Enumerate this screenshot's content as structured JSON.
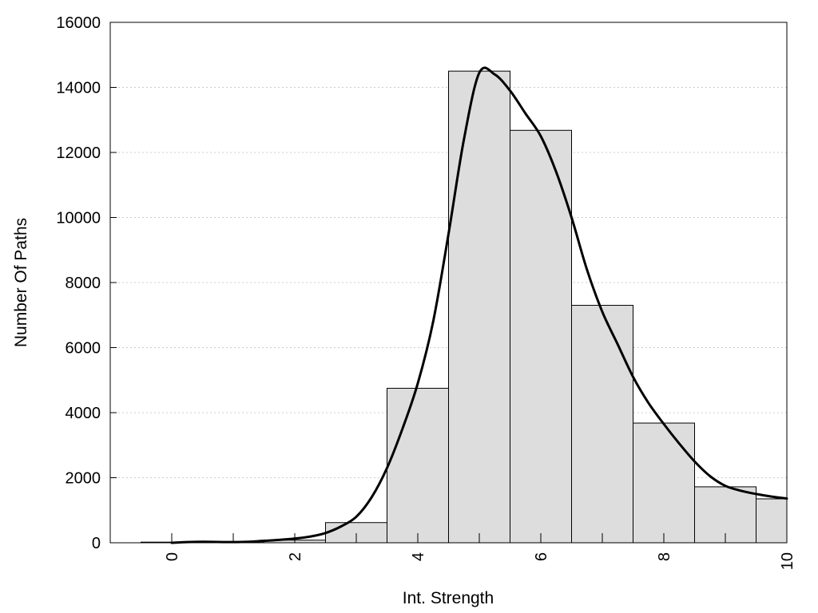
{
  "chart_data": {
    "type": "bar",
    "title": "",
    "xlabel": "Int. Strength",
    "ylabel": "Number Of Paths",
    "xlim": [
      -1,
      10
    ],
    "ylim": [
      0,
      16000
    ],
    "grid": true,
    "x_ticks": [
      "0",
      "2",
      "4",
      "6",
      "8",
      "10"
    ],
    "y_ticks": [
      "0",
      "2000",
      "4000",
      "6000",
      "8000",
      "10000",
      "12000",
      "14000",
      "16000"
    ],
    "bar_width": 1,
    "categories": [
      0,
      1,
      2,
      3,
      4,
      5,
      6,
      7,
      8,
      9,
      10
    ],
    "values": [
      20,
      30,
      80,
      620,
      4750,
      14500,
      12680,
      7300,
      3680,
      1720,
      1350
    ],
    "curve": {
      "x": [
        0,
        0.25,
        0.5,
        0.75,
        1,
        1.25,
        1.5,
        1.75,
        2,
        2.25,
        2.5,
        2.75,
        3,
        3.25,
        3.5,
        3.75,
        4,
        4.25,
        4.5,
        4.75,
        5,
        5.25,
        5.5,
        5.75,
        6,
        6.25,
        6.5,
        6.75,
        7,
        7.25,
        7.5,
        7.75,
        8,
        8.25,
        8.5,
        8.75,
        9,
        9.25,
        9.5,
        9.75,
        10
      ],
      "y": [
        0,
        20,
        30,
        25,
        20,
        30,
        60,
        90,
        130,
        190,
        300,
        500,
        800,
        1400,
        2300,
        3500,
        4900,
        6800,
        9500,
        12400,
        14450,
        14400,
        13900,
        13200,
        12500,
        11400,
        10000,
        8400,
        7100,
        6100,
        5100,
        4300,
        3650,
        3050,
        2500,
        2050,
        1750,
        1600,
        1500,
        1420,
        1360
      ],
      "color": "#000000"
    },
    "bar_fill": "#dddddd",
    "bar_stroke": "#000000",
    "grid_color": "#cccccc"
  }
}
